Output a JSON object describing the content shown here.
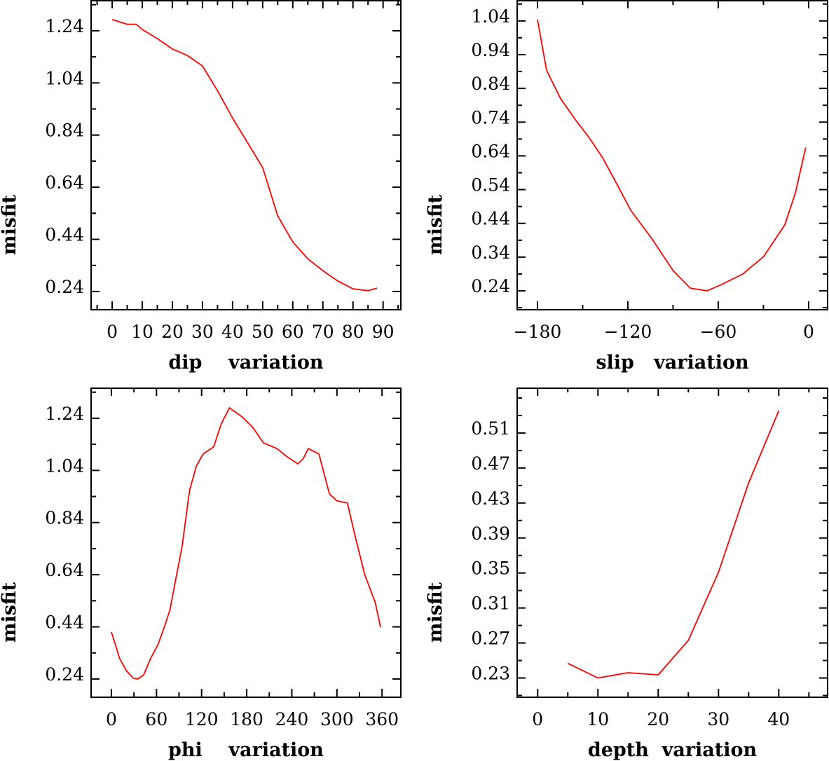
{
  "colors": {
    "line": "#ff0000",
    "axis": "#000000"
  },
  "chart_data": [
    {
      "type": "line",
      "xlabel": "dip    variation",
      "ylabel": "misfit",
      "xlim": [
        -7,
        95.9
      ],
      "ylim": [
        0.17,
        1.358
      ],
      "xticks": [
        0,
        10,
        20,
        30,
        40,
        50,
        60,
        70,
        80,
        90
      ],
      "xtick_labels": [
        "0",
        "10",
        "20",
        "30",
        "40",
        "50",
        "60",
        "70",
        "80",
        "90"
      ],
      "xminor": 5,
      "yticks": [
        0.24,
        0.44,
        0.64,
        0.84,
        1.04,
        1.24
      ],
      "ytick_labels": [
        "0.24",
        "0.44",
        "0.64",
        "0.84",
        "1.04",
        "1.24"
      ],
      "yminor": 0.1,
      "x": [
        0,
        5,
        8,
        10,
        15,
        20,
        25,
        30,
        35,
        40,
        45,
        50,
        55,
        60,
        65,
        70,
        75,
        80,
        85,
        88
      ],
      "y": [
        1.283,
        1.265,
        1.265,
        1.245,
        1.21,
        1.17,
        1.145,
        1.105,
        1.01,
        0.905,
        0.81,
        0.715,
        0.53,
        0.43,
        0.365,
        0.32,
        0.28,
        0.25,
        0.243,
        0.253
      ]
    },
    {
      "type": "line",
      "xlabel": "slip   variation",
      "ylabel": "misfit",
      "xlim": [
        -193.5,
        12.6
      ],
      "ylim": [
        0.184,
        1.102
      ],
      "xticks": [
        -180,
        -120,
        -60,
        0
      ],
      "xtick_labels": [
        "−180",
        "−120",
        "−60",
        "0"
      ],
      "xminor": 30,
      "yticks": [
        0.24,
        0.34,
        0.44,
        0.54,
        0.64,
        0.74,
        0.84,
        0.94,
        1.04
      ],
      "ytick_labels": [
        "0.24",
        "0.34",
        "0.44",
        "0.54",
        "0.64",
        "0.74",
        "0.84",
        "0.94",
        "1.04"
      ],
      "yminor": 0.05,
      "x": [
        -180,
        -174,
        -164.7,
        -155,
        -146,
        -136.7,
        -127.4,
        -118,
        -104,
        -90,
        -78.6,
        -67.4,
        -57.7,
        -43.7,
        -29.8,
        -15.8,
        -8.8,
        -1.9
      ],
      "y": [
        1.044,
        0.894,
        0.81,
        0.748,
        0.696,
        0.634,
        0.557,
        0.478,
        0.394,
        0.3,
        0.248,
        0.24,
        0.259,
        0.29,
        0.342,
        0.436,
        0.53,
        0.665
      ]
    },
    {
      "type": "line",
      "xlabel": "phi    variation",
      "ylabel": "misfit",
      "xlim": [
        -27,
        385
      ],
      "ylim": [
        0.17,
        1.358
      ],
      "xticks": [
        0,
        60,
        120,
        180,
        240,
        300,
        360
      ],
      "xtick_labels": [
        "0",
        "60",
        "120",
        "180",
        "240",
        "300",
        "360"
      ],
      "xminor": 30,
      "yticks": [
        0.24,
        0.44,
        0.64,
        0.84,
        1.04,
        1.24
      ],
      "ytick_labels": [
        "0.24",
        "0.44",
        "0.64",
        "0.84",
        "1.04",
        "1.24"
      ],
      "yminor": 0.1,
      "x": [
        0,
        11,
        20,
        29,
        35,
        43,
        52,
        62,
        71,
        78,
        85,
        94,
        104,
        113,
        122,
        136,
        146,
        157,
        174,
        188,
        202,
        220,
        234,
        248,
        255,
        262,
        276,
        290,
        300,
        314,
        323,
        337,
        351,
        358
      ],
      "y": [
        0.42,
        0.318,
        0.272,
        0.243,
        0.24,
        0.256,
        0.318,
        0.372,
        0.444,
        0.506,
        0.614,
        0.748,
        0.963,
        1.057,
        1.103,
        1.13,
        1.218,
        1.28,
        1.245,
        1.205,
        1.146,
        1.124,
        1.092,
        1.065,
        1.084,
        1.124,
        1.103,
        0.95,
        0.923,
        0.915,
        0.802,
        0.64,
        0.533,
        0.439
      ]
    },
    {
      "type": "line",
      "xlabel": "depth  variation",
      "ylabel": "misfit",
      "xlim": [
        -3.4,
        48.1
      ],
      "ylim": [
        0.208,
        0.562
      ],
      "xticks": [
        0,
        10,
        20,
        30,
        40
      ],
      "xtick_labels": [
        "0",
        "10",
        "20",
        "30",
        "40"
      ],
      "xminor": 5,
      "yticks": [
        0.23,
        0.27,
        0.31,
        0.35,
        0.39,
        0.43,
        0.47,
        0.51
      ],
      "ytick_labels": [
        "0.23",
        "0.27",
        "0.31",
        "0.35",
        "0.39",
        "0.43",
        "0.47",
        "0.51"
      ],
      "yminor": 0.02,
      "x": [
        5,
        10,
        15,
        20,
        25,
        30,
        35,
        40
      ],
      "y": [
        0.2467,
        0.23,
        0.236,
        0.2336,
        0.273,
        0.351,
        0.453,
        0.5355
      ]
    }
  ]
}
